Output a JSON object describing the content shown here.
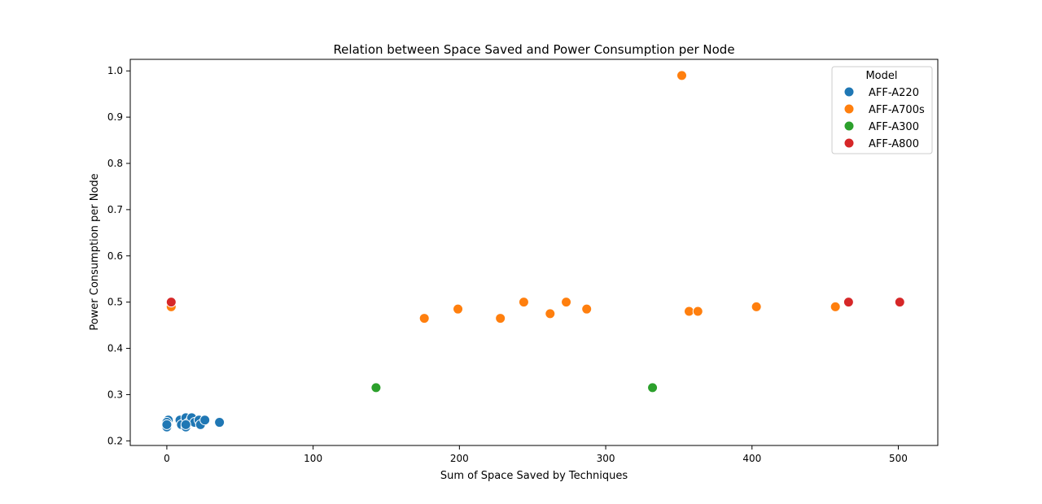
{
  "chart_data": {
    "type": "scatter",
    "title": "Relation between Space Saved and Power Consumption per Node",
    "xlabel": "Sum of Space Saved by Techniques",
    "ylabel": "Power Consumption per Node",
    "xlim": [
      -25,
      527
    ],
    "ylim": [
      0.19,
      1.025
    ],
    "xticks": [
      0,
      100,
      200,
      300,
      400,
      500
    ],
    "yticks": [
      0.2,
      0.3,
      0.4,
      0.5,
      0.6,
      0.7,
      0.8,
      0.9,
      1.0
    ],
    "ytick_labels": [
      "0.2",
      "0.3",
      "0.4",
      "0.5",
      "0.6",
      "0.7",
      "0.8",
      "0.9",
      "1.0"
    ],
    "grid": false,
    "legend": {
      "title": "Model",
      "placement": "top-right"
    },
    "series": [
      {
        "name": "AFF-A220",
        "color": "#1f77b4",
        "points": [
          [
            0,
            0.23
          ],
          [
            1,
            0.245
          ],
          [
            0,
            0.24
          ],
          [
            9,
            0.245
          ],
          [
            10,
            0.235
          ],
          [
            13,
            0.23
          ],
          [
            13,
            0.25
          ],
          [
            15,
            0.24
          ],
          [
            17,
            0.25
          ],
          [
            19,
            0.24
          ],
          [
            22,
            0.245
          ],
          [
            23,
            0.235
          ],
          [
            26,
            0.245
          ],
          [
            36,
            0.24
          ],
          [
            0,
            0.235
          ],
          [
            13,
            0.235
          ]
        ]
      },
      {
        "name": "AFF-A700s",
        "color": "#ff7f0e",
        "points": [
          [
            3,
            0.49
          ],
          [
            176,
            0.465
          ],
          [
            199,
            0.485
          ],
          [
            228,
            0.465
          ],
          [
            244,
            0.5
          ],
          [
            262,
            0.475
          ],
          [
            273,
            0.5
          ],
          [
            287,
            0.485
          ],
          [
            352,
            0.99
          ],
          [
            357,
            0.48
          ],
          [
            363,
            0.48
          ],
          [
            403,
            0.49
          ],
          [
            457,
            0.49
          ]
        ]
      },
      {
        "name": "AFF-A300",
        "color": "#2ca02c",
        "points": [
          [
            143,
            0.315
          ],
          [
            332,
            0.315
          ]
        ]
      },
      {
        "name": "AFF-A800",
        "color": "#d62728",
        "points": [
          [
            3,
            0.5
          ],
          [
            466,
            0.5
          ],
          [
            501,
            0.5
          ]
        ]
      }
    ]
  }
}
